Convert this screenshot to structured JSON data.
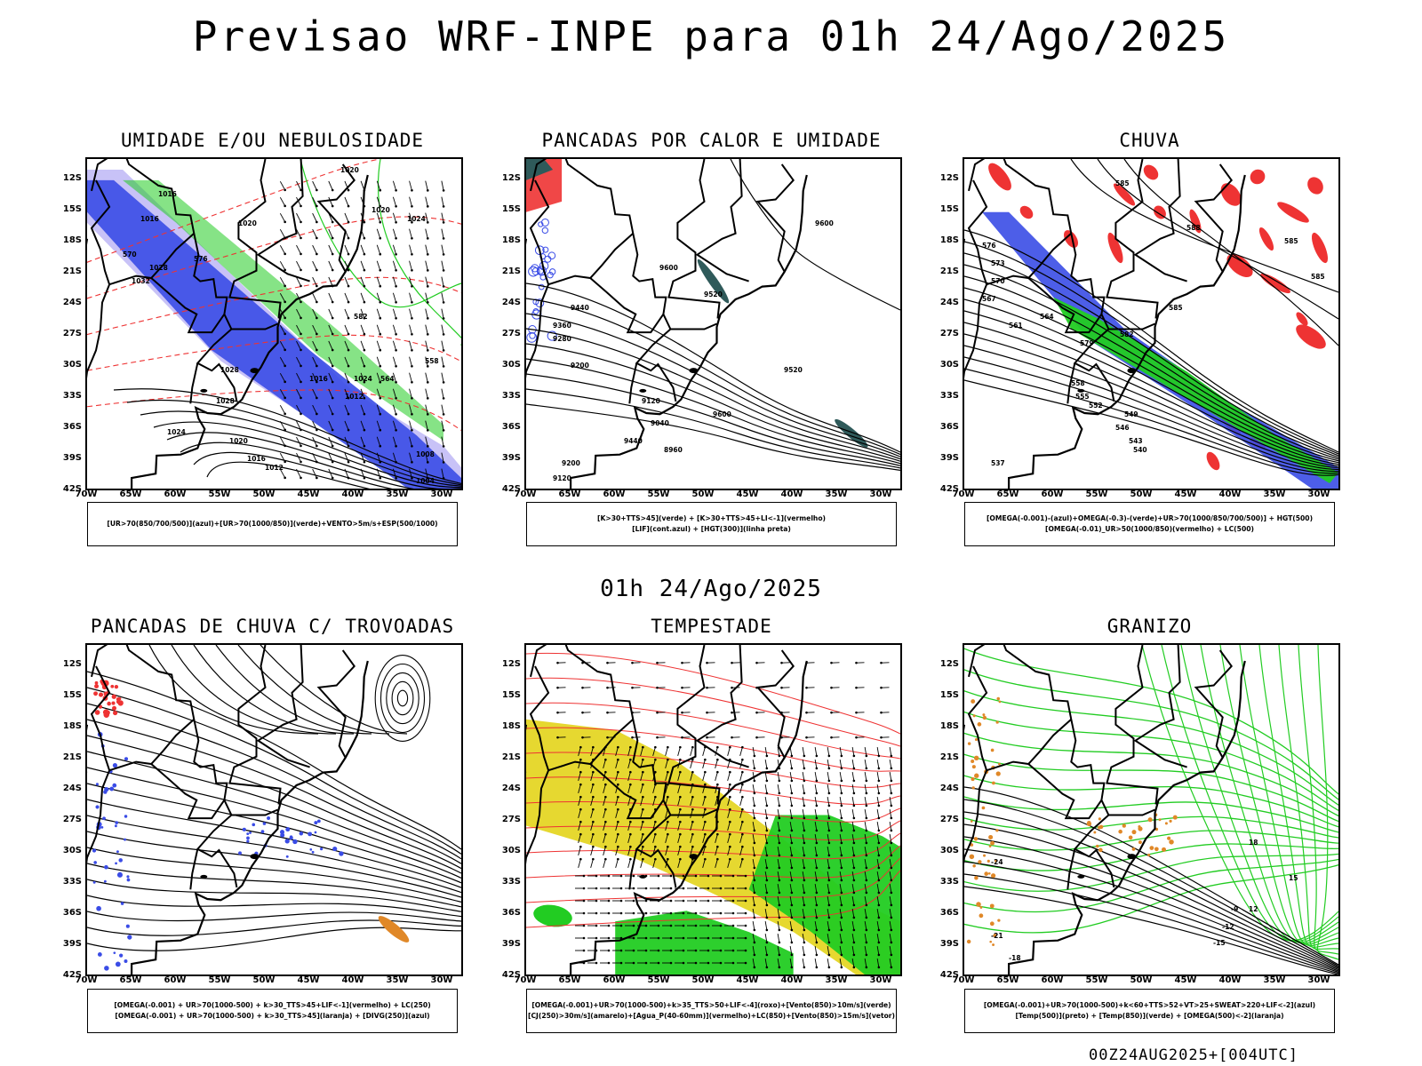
{
  "title": "Previsao WRF-INPE  para 01h 24/Ago/2025",
  "subtitle": "01h 24/Ago/2025",
  "footer": "00Z24AUG2025+[004UTC]",
  "lat_labels": [
    "12S",
    "15S",
    "18S",
    "21S",
    "24S",
    "27S",
    "30S",
    "33S",
    "36S",
    "39S",
    "42S"
  ],
  "lon_labels": [
    "70W",
    "65W",
    "60W",
    "55W",
    "50W",
    "45W",
    "40W",
    "35W",
    "30W"
  ],
  "colors": {
    "blue": "#3a4ce6",
    "green": "#22cc22",
    "red": "#ee3333",
    "orange": "#e08828",
    "yellow": "#e6d830",
    "teal": "#2f5a5a",
    "purple": "#9a90f0"
  },
  "panels": [
    {
      "title": "UMIDADE E/OU NEBULOSIDADE",
      "legend": [
        "[UR>70(850/700/500)](azul)+[UR>70(1000/850)](verde)+VENTO>5m/s+ESP(500/1000)"
      ],
      "labels": [
        "1020",
        "1016",
        "1016",
        "1020",
        "1020",
        "1024",
        "1028",
        "1032",
        "1028",
        "1028",
        "1024",
        "1020",
        "1016",
        "1012",
        "1008",
        "1004",
        "1016",
        "1024",
        "570",
        "576",
        "582",
        "564",
        "558",
        "1012"
      ]
    },
    {
      "title": "PANCADAS POR CALOR E UMIDADE",
      "legend": [
        "[K>30+TTS>45](verde) + [K>30+TTS>45+LI<-1](vermelho)",
        "[LIF](cont.azul) + [HGT(300)](linha preta)"
      ],
      "labels": [
        "9600",
        "9520",
        "9440",
        "9360",
        "9280",
        "9200",
        "9120",
        "9040",
        "8960",
        "9600",
        "9520",
        "9440",
        "9200",
        "9120",
        "9600"
      ]
    },
    {
      "title": "CHUVA",
      "legend": [
        "[OMEGA(-0.001)-(azul)+OMEGA(-0.3)-(verde)+UR>70(1000/850/700/500)] + HGT(500)",
        "[OMEGA(-0.01)_UR>50(1000/850)(vermelho) + LC(500)"
      ],
      "labels": [
        "585",
        "588",
        "585",
        "585",
        "585",
        "582",
        "579",
        "576",
        "573",
        "570",
        "567",
        "564",
        "561",
        "558",
        "555",
        "552",
        "549",
        "546",
        "543",
        "540",
        "537"
      ]
    },
    {
      "title": "PANCADAS DE CHUVA C/ TROVOADAS",
      "legend": [
        "[OMEGA(-0.001) + UR>70(1000-500) + k>30_TTS>45+LIF<-1](vermelho) + LC(250)",
        "[OMEGA(-0.001) + UR>70(1000-500) + k>30_TTS>45](laranja) + [DIVG(250)](azul)"
      ],
      "labels": []
    },
    {
      "title": "TEMPESTADE",
      "legend": [
        "[OMEGA(-0.001)+UR>70(1000-500)+k>35_TTS>50+LIF<-4](roxo)+[Vento(850)>10m/s](verde)",
        "[CJ(250)>30m/s](amarelo)+[Agua_P(40-60mm)](vermelho)+LC(850)+[Vento(850)>15m/s](vetor)"
      ],
      "labels": []
    },
    {
      "title": "GRANIZO",
      "legend": [
        "[OMEGA(-0.001)+UR>70(1000-500)+k<60+TTS>52+VT>25+SWEAT>220+LIF<-2](azul)",
        "[Temp(500)](preto) + [Temp(850)](verde) + [OMEGA(500)<-2](laranja)"
      ],
      "labels": [
        "-24",
        "-21",
        "-18",
        "-15",
        "-12",
        "-9",
        "12",
        "15",
        "18"
      ]
    }
  ]
}
